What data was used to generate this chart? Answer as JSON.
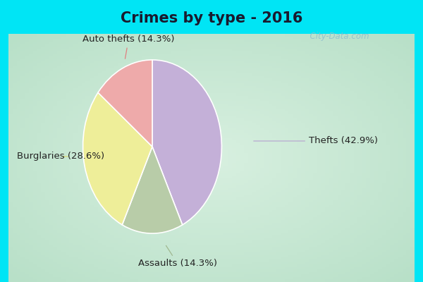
{
  "title": "Crimes by type - 2016",
  "slices": [
    {
      "label": "Thefts (42.9%)",
      "value": 42.9,
      "color": "#c4b0d8"
    },
    {
      "label": "Assaults (14.3%)",
      "value": 14.3,
      "color": "#b8cca8"
    },
    {
      "label": "Burglaries (28.6%)",
      "value": 28.6,
      "color": "#eeee99"
    },
    {
      "label": "Auto thefts (14.3%)",
      "value": 14.3,
      "color": "#eeaaaa"
    }
  ],
  "bg_cyan": "#00e5f5",
  "bg_center": "#d8f0e0",
  "bg_edge": "#b8e8d0",
  "title_color": "#1a1a2e",
  "title_fontsize": 15,
  "label_fontsize": 9.5,
  "watermark": "  City-Data.com",
  "watermark_color": "#90bece"
}
